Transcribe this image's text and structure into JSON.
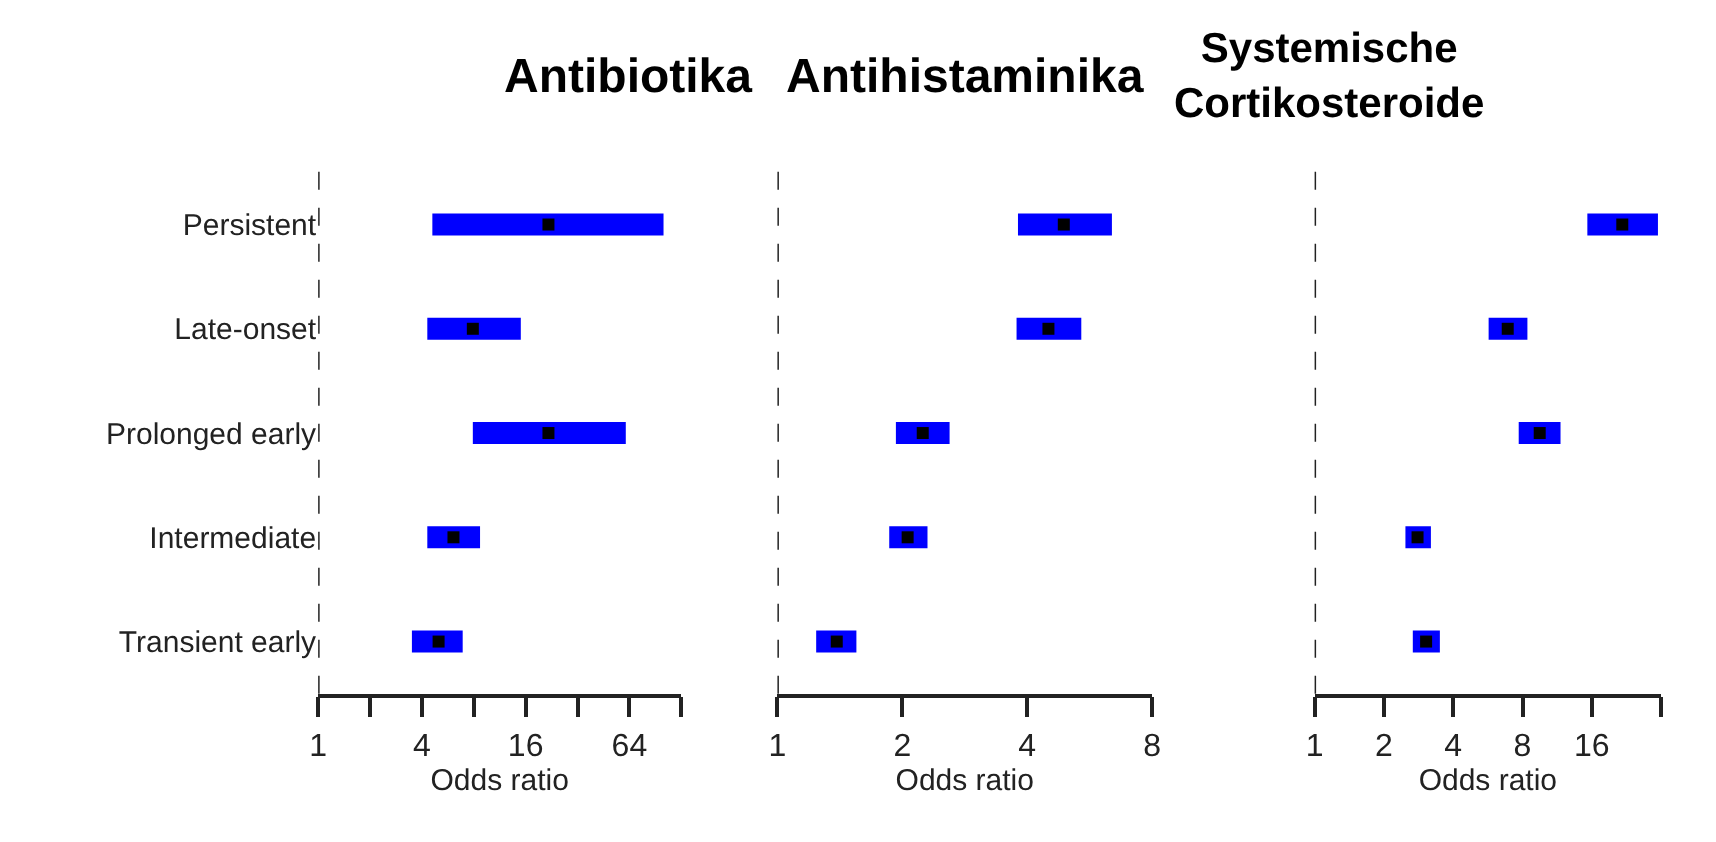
{
  "chart_data": [
    {
      "type": "scatter",
      "title": "Antibiotika",
      "xlabel": "Odds ratio",
      "orientation": "horizontal",
      "log": "x",
      "marker": "square",
      "categories": [
        "Persistent",
        "Late-onset",
        "Prolonged early",
        "Intermediate",
        "Transient early"
      ],
      "series": [
        {
          "color": "#000000",
          "values": [
            21.7,
            7.9,
            21.7,
            6.1,
            5.0
          ],
          "errors": [
            [
              4.6,
              101
            ],
            [
              4.3,
              15
            ],
            [
              7.9,
              61
            ],
            [
              4.3,
              8.7
            ],
            [
              3.5,
              6.9
            ]
          ]
        }
      ],
      "xlim": [
        1,
        128
      ],
      "xticks": [
        1,
        {
          "value": 2,
          "label": null
        },
        4,
        {
          "value": 8,
          "label": null
        },
        16,
        {
          "value": 32,
          "label": null
        },
        64,
        {
          "value": 128,
          "label": null
        }
      ],
      "ref_lines": [
        {
          "axis": "x",
          "value": 1,
          "line_style": "dashed"
        }
      ]
    },
    {
      "type": "scatter",
      "title": "Antihistaminika",
      "xlabel": "Odds ratio",
      "orientation": "horizontal",
      "log": "x",
      "marker": "square",
      "categories": [
        null,
        null,
        null,
        null,
        null
      ],
      "series": [
        {
          "color": "#000000",
          "values": [
            4.9,
            4.5,
            2.24,
            2.06,
            1.39
          ],
          "errors": [
            [
              3.8,
              6.4
            ],
            [
              3.77,
              5.4
            ],
            [
              1.93,
              2.6
            ],
            [
              1.86,
              2.3
            ],
            [
              1.24,
              1.55
            ]
          ]
        }
      ],
      "xlim": [
        1,
        8
      ],
      "xticks": [
        1,
        2,
        4,
        8
      ],
      "ref_lines": [
        {
          "axis": "x",
          "value": 1,
          "line_style": "dashed"
        }
      ]
    },
    {
      "type": "scatter",
      "title": "Systemische Cortikosteroide",
      "xlabel": "Odds ratio",
      "orientation": "horizontal",
      "log": "x",
      "marker": "square",
      "categories": [
        null,
        null,
        null,
        null,
        null
      ],
      "series": [
        {
          "color": "#000000",
          "values": [
            21.7,
            6.9,
            9.5,
            2.8,
            3.05
          ],
          "errors": [
            [
              15.3,
              31
            ],
            [
              5.7,
              8.4
            ],
            [
              7.7,
              11.7
            ],
            [
              2.48,
              3.2
            ],
            [
              2.67,
              3.5
            ]
          ]
        }
      ],
      "xlim": [
        1,
        32
      ],
      "xticks": [
        1,
        2,
        4,
        8,
        16,
        {
          "value": 32,
          "label": null
        }
      ],
      "ref_lines": [
        {
          "axis": "x",
          "value": 1,
          "line_style": "dashed"
        }
      ]
    }
  ]
}
